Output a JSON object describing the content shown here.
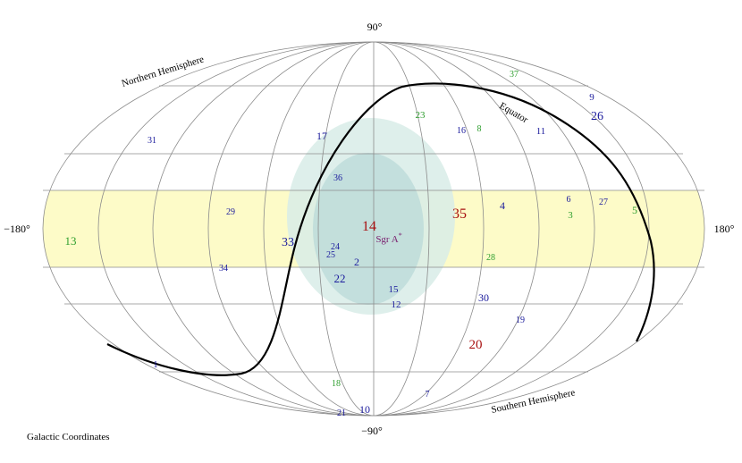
{
  "labels": {
    "lat_top": "90°",
    "lat_bottom": "−90°",
    "lon_left": "−180°",
    "lon_right": "180°",
    "northern": "Northern Hemisphere",
    "southern": "Southern Hemisphere",
    "equator": "Equator",
    "sgr_main": "Sgr A",
    "sgr_sup": "*",
    "caption": "Galactic Coordinates"
  },
  "colors": {
    "band": "#fdfbc8",
    "halo_outer": "#d8ece8",
    "halo_inner": "#b9d9d8",
    "grid": "#8c8c8c",
    "blue": "#1a1a9c",
    "green": "#2e9e2e",
    "red": "#a81010",
    "purple": "#7a1f6e"
  },
  "markers": [
    {
      "id": "37",
      "color": "green"
    },
    {
      "id": "9",
      "color": "blue"
    },
    {
      "id": "26",
      "color": "blue"
    },
    {
      "id": "23",
      "color": "green"
    },
    {
      "id": "16",
      "color": "blue"
    },
    {
      "id": "8",
      "color": "green"
    },
    {
      "id": "11",
      "color": "blue"
    },
    {
      "id": "31",
      "color": "blue"
    },
    {
      "id": "17",
      "color": "blue"
    },
    {
      "id": "36",
      "color": "blue"
    },
    {
      "id": "6",
      "color": "blue"
    },
    {
      "id": "27",
      "color": "blue"
    },
    {
      "id": "5",
      "color": "green"
    },
    {
      "id": "29",
      "color": "blue"
    },
    {
      "id": "4",
      "color": "blue"
    },
    {
      "id": "3",
      "color": "green"
    },
    {
      "id": "35",
      "color": "red"
    },
    {
      "id": "14",
      "color": "red"
    },
    {
      "id": "13",
      "color": "green"
    },
    {
      "id": "33",
      "color": "blue"
    },
    {
      "id": "24",
      "color": "blue"
    },
    {
      "id": "25",
      "color": "blue"
    },
    {
      "id": "2",
      "color": "blue"
    },
    {
      "id": "28",
      "color": "green"
    },
    {
      "id": "34",
      "color": "blue"
    },
    {
      "id": "22",
      "color": "blue"
    },
    {
      "id": "15",
      "color": "blue"
    },
    {
      "id": "12",
      "color": "blue"
    },
    {
      "id": "30",
      "color": "blue"
    },
    {
      "id": "19",
      "color": "blue"
    },
    {
      "id": "20",
      "color": "red"
    },
    {
      "id": "1",
      "color": "blue"
    },
    {
      "id": "18",
      "color": "green"
    },
    {
      "id": "7",
      "color": "blue"
    },
    {
      "id": "21",
      "color": "blue"
    },
    {
      "id": "10",
      "color": "blue"
    }
  ]
}
